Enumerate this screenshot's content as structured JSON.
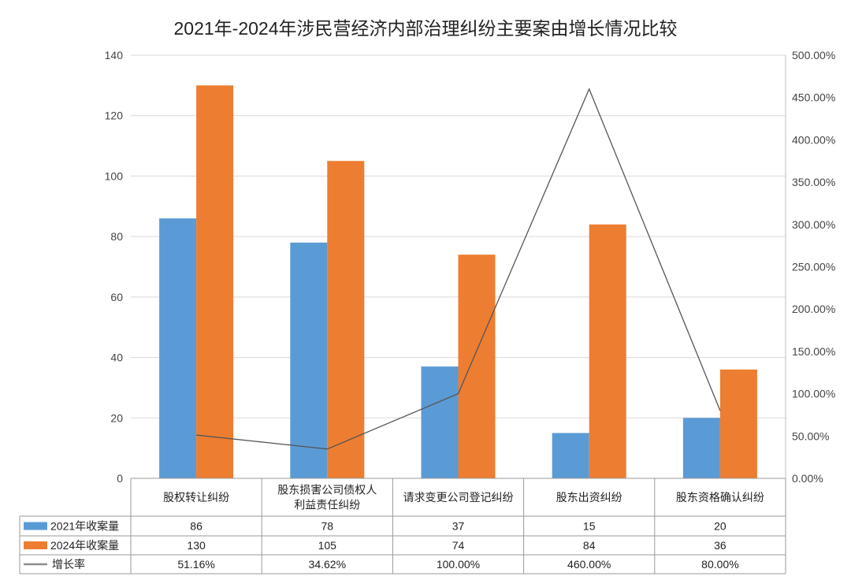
{
  "chart_data": {
    "type": "bar",
    "title": "2021年-2024年涉民营经济内部治理纠纷主要案由增长情况比较",
    "categories": [
      [
        "股权转让纠纷"
      ],
      [
        "股东损害公司债权人",
        "利益责任纠纷"
      ],
      [
        "请求变更公司登记纠纷"
      ],
      [
        "股东出资纠纷"
      ],
      [
        "股东资格确认纠纷"
      ]
    ],
    "series": [
      {
        "name": "2021年收案量",
        "type": "bar",
        "axis": "left",
        "color": "#5b9bd5",
        "values": [
          86,
          78,
          37,
          15,
          20
        ],
        "labels": [
          "86",
          "78",
          "37",
          "15",
          "20"
        ]
      },
      {
        "name": "2024年收案量",
        "type": "bar",
        "axis": "left",
        "color": "#ed7d31",
        "values": [
          130,
          105,
          74,
          84,
          36
        ],
        "labels": [
          "130",
          "105",
          "74",
          "84",
          "36"
        ]
      },
      {
        "name": "增长率",
        "type": "line",
        "axis": "right",
        "color": "#8c8c8c",
        "values": [
          51.16,
          34.62,
          100.0,
          460.0,
          80.0
        ],
        "labels": [
          "51.16%",
          "34.62%",
          "100.00%",
          "460.00%",
          "80.00%"
        ]
      }
    ],
    "ylim_left": [
      0,
      140
    ],
    "yticks_left": [
      "0",
      "20",
      "40",
      "60",
      "80",
      "100",
      "120",
      "140"
    ],
    "ylim_right": [
      0,
      500
    ],
    "yticks_right": [
      "0.00%",
      "50.00%",
      "100.00%",
      "150.00%",
      "200.00%",
      "250.00%",
      "300.00%",
      "350.00%",
      "400.00%",
      "450.00%",
      "500.00%"
    ],
    "grid": true,
    "legend": "data-table-bottom"
  }
}
